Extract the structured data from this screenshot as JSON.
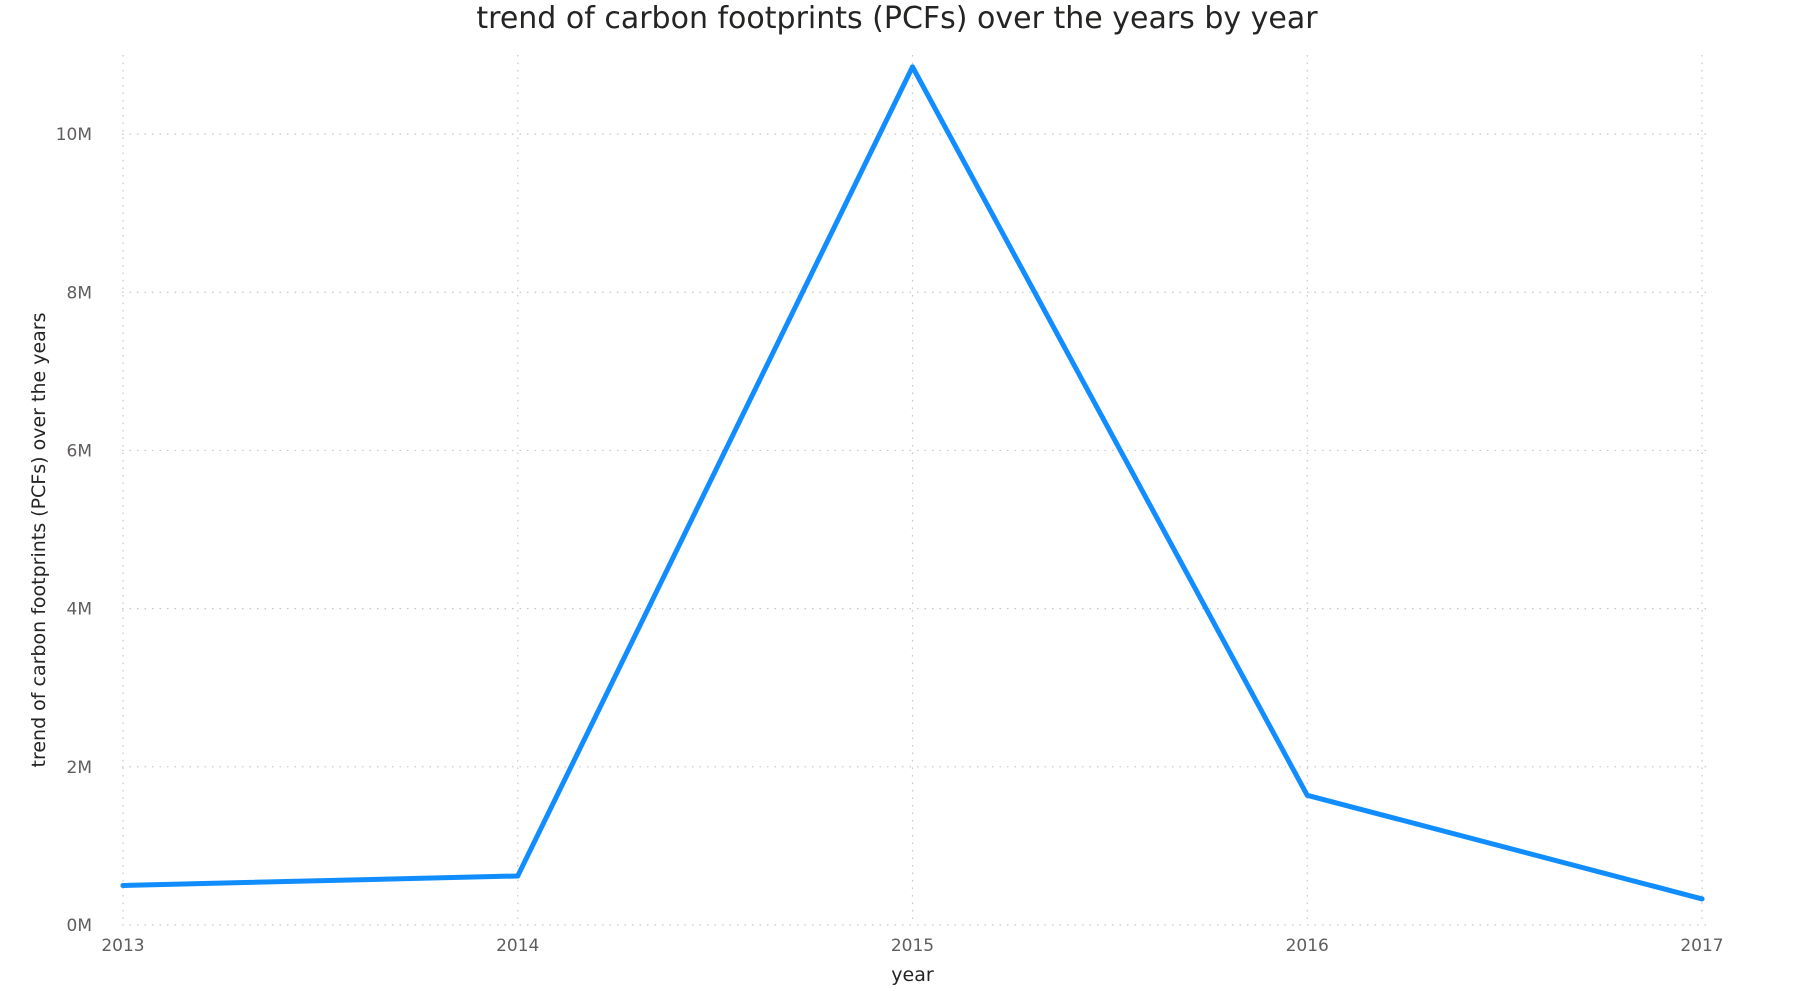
{
  "chart_data": {
    "type": "line",
    "title": "trend of carbon footprints (PCFs) over the years by year",
    "xlabel": "year",
    "ylabel": "trend of carbon footprints (PCFs) over the years",
    "categories": [
      "2013",
      "2014",
      "2015",
      "2016",
      "2017"
    ],
    "series": [
      {
        "values": [
          500000,
          620000,
          10850000,
          1640000,
          330000
        ],
        "color": "#118DFF"
      }
    ],
    "ylim": [
      0,
      11000000
    ],
    "yticks": [
      {
        "value": 0,
        "label": "0M"
      },
      {
        "value": 2000000,
        "label": "2M"
      },
      {
        "value": 4000000,
        "label": "4M"
      },
      {
        "value": 6000000,
        "label": "6M"
      },
      {
        "value": 8000000,
        "label": "8M"
      },
      {
        "value": 10000000,
        "label": "10M"
      }
    ],
    "grid": true,
    "legend": "none"
  }
}
